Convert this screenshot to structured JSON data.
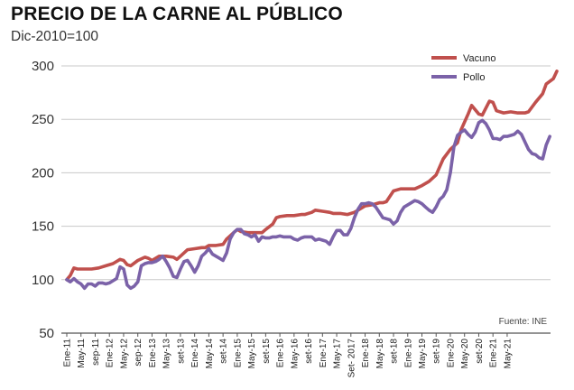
{
  "chart_data": {
    "type": "line",
    "title": "PRECIO DE LA CARNE AL PÚBLICO",
    "subtitle": "Dic-2010=100",
    "source": "Fuente: INE",
    "ylim": [
      50,
      300
    ],
    "yticks": [
      50,
      100,
      150,
      200,
      250,
      300
    ],
    "grid": true,
    "legend_position": "top-right",
    "x_tick_labels": [
      "Ene-11",
      "May-11",
      "sep-11",
      "Ene-12",
      "May-12",
      "sep-12",
      "Ene-13",
      "May-13",
      "set-13",
      "Ene-14",
      "May-14",
      "set-14",
      "Ene-15",
      "May-15",
      "set-15",
      "Ene-16",
      "May-16",
      "set-16",
      "Ene-17",
      "May-17",
      "Set- 2017",
      "Ene-18",
      "May-18",
      "set-18",
      "Ene-19",
      "May-19",
      "set-19",
      "Ene-20",
      "May-20",
      "set-20",
      "Ene-21",
      "May-21"
    ],
    "x_start_month_index": 0,
    "x_month_step": 4,
    "series": [
      {
        "name": "Vacuno",
        "color": "#c0504d",
        "points": [
          [
            0,
            100
          ],
          [
            1,
            104
          ],
          [
            2,
            111
          ],
          [
            3,
            110
          ],
          [
            5,
            110
          ],
          [
            7,
            110
          ],
          [
            9,
            111
          ],
          [
            11,
            113
          ],
          [
            13,
            115
          ],
          [
            15,
            119
          ],
          [
            16,
            118
          ],
          [
            17,
            114
          ],
          [
            18,
            113
          ],
          [
            20,
            118
          ],
          [
            22,
            121
          ],
          [
            23,
            120
          ],
          [
            24,
            118
          ],
          [
            26,
            122
          ],
          [
            28,
            122
          ],
          [
            30,
            121
          ],
          [
            31,
            119
          ],
          [
            32,
            122
          ],
          [
            34,
            128
          ],
          [
            36,
            129
          ],
          [
            38,
            130
          ],
          [
            39,
            130
          ],
          [
            40,
            132
          ],
          [
            42,
            132
          ],
          [
            44,
            133
          ],
          [
            45,
            138
          ],
          [
            47,
            144
          ],
          [
            48,
            147
          ],
          [
            49,
            145
          ],
          [
            51,
            144
          ],
          [
            53,
            144
          ],
          [
            55,
            144
          ],
          [
            56,
            147
          ],
          [
            58,
            152
          ],
          [
            59,
            158
          ],
          [
            60,
            159
          ],
          [
            62,
            160
          ],
          [
            64,
            160
          ],
          [
            66,
            161
          ],
          [
            67,
            161
          ],
          [
            69,
            163
          ],
          [
            70,
            165
          ],
          [
            72,
            164
          ],
          [
            74,
            163
          ],
          [
            75,
            162
          ],
          [
            77,
            162
          ],
          [
            79,
            161
          ],
          [
            81,
            163
          ],
          [
            83,
            167
          ],
          [
            84,
            169
          ],
          [
            86,
            170
          ],
          [
            88,
            172
          ],
          [
            89,
            172
          ],
          [
            90,
            173
          ],
          [
            92,
            183
          ],
          [
            94,
            185
          ],
          [
            96,
            185
          ],
          [
            98,
            185
          ],
          [
            100,
            188
          ],
          [
            102,
            192
          ],
          [
            104,
            198
          ],
          [
            106,
            213
          ],
          [
            108,
            222
          ],
          [
            110,
            228
          ],
          [
            111,
            240
          ],
          [
            113,
            255
          ],
          [
            114,
            263
          ],
          [
            116,
            255
          ],
          [
            117,
            254
          ],
          [
            119,
            267
          ],
          [
            120,
            266
          ],
          [
            121,
            258
          ],
          [
            123,
            256
          ],
          [
            125,
            257
          ],
          [
            127,
            256
          ],
          [
            129,
            256
          ],
          [
            130,
            257
          ],
          [
            132,
            266
          ],
          [
            134,
            274
          ],
          [
            135,
            283
          ],
          [
            137,
            288
          ],
          [
            138,
            295
          ]
        ]
      },
      {
        "name": "Pollo",
        "color": "#7b62a8",
        "points": [
          [
            0,
            100
          ],
          [
            1,
            98
          ],
          [
            2,
            101
          ],
          [
            3,
            98
          ],
          [
            4,
            96
          ],
          [
            5,
            92
          ],
          [
            6,
            96
          ],
          [
            7,
            96
          ],
          [
            8,
            94
          ],
          [
            9,
            97
          ],
          [
            10,
            97
          ],
          [
            11,
            96
          ],
          [
            12,
            97
          ],
          [
            13,
            99
          ],
          [
            14,
            101
          ],
          [
            15,
            112
          ],
          [
            16,
            110
          ],
          [
            17,
            95
          ],
          [
            18,
            92
          ],
          [
            19,
            94
          ],
          [
            20,
            98
          ],
          [
            21,
            113
          ],
          [
            22,
            115
          ],
          [
            23,
            116
          ],
          [
            24,
            116
          ],
          [
            25,
            117
          ],
          [
            26,
            119
          ],
          [
            27,
            122
          ],
          [
            28,
            117
          ],
          [
            29,
            111
          ],
          [
            30,
            103
          ],
          [
            31,
            102
          ],
          [
            32,
            110
          ],
          [
            33,
            117
          ],
          [
            34,
            118
          ],
          [
            35,
            113
          ],
          [
            36,
            107
          ],
          [
            37,
            113
          ],
          [
            38,
            122
          ],
          [
            39,
            125
          ],
          [
            40,
            129
          ],
          [
            41,
            124
          ],
          [
            42,
            122
          ],
          [
            43,
            120
          ],
          [
            44,
            118
          ],
          [
            45,
            125
          ],
          [
            46,
            138
          ],
          [
            47,
            144
          ],
          [
            48,
            147
          ],
          [
            49,
            147
          ],
          [
            50,
            143
          ],
          [
            51,
            142
          ],
          [
            52,
            140
          ],
          [
            53,
            142
          ],
          [
            54,
            136
          ],
          [
            55,
            140
          ],
          [
            56,
            139
          ],
          [
            57,
            139
          ],
          [
            58,
            140
          ],
          [
            59,
            140
          ],
          [
            60,
            141
          ],
          [
            61,
            140
          ],
          [
            62,
            140
          ],
          [
            63,
            140
          ],
          [
            64,
            138
          ],
          [
            65,
            137
          ],
          [
            66,
            139
          ],
          [
            67,
            140
          ],
          [
            68,
            140
          ],
          [
            69,
            140
          ],
          [
            70,
            137
          ],
          [
            71,
            138
          ],
          [
            72,
            137
          ],
          [
            73,
            136
          ],
          [
            74,
            133
          ],
          [
            75,
            140
          ],
          [
            76,
            146
          ],
          [
            77,
            146
          ],
          [
            78,
            142
          ],
          [
            79,
            142
          ],
          [
            80,
            148
          ],
          [
            81,
            158
          ],
          [
            82,
            166
          ],
          [
            83,
            171
          ],
          [
            84,
            171
          ],
          [
            85,
            172
          ],
          [
            86,
            171
          ],
          [
            87,
            168
          ],
          [
            88,
            163
          ],
          [
            89,
            158
          ],
          [
            90,
            157
          ],
          [
            91,
            156
          ],
          [
            92,
            152
          ],
          [
            93,
            155
          ],
          [
            94,
            163
          ],
          [
            95,
            168
          ],
          [
            96,
            170
          ],
          [
            97,
            172
          ],
          [
            98,
            174
          ],
          [
            99,
            173
          ],
          [
            100,
            171
          ],
          [
            101,
            168
          ],
          [
            102,
            165
          ],
          [
            103,
            163
          ],
          [
            104,
            168
          ],
          [
            105,
            175
          ],
          [
            106,
            178
          ],
          [
            107,
            184
          ],
          [
            108,
            200
          ],
          [
            109,
            224
          ],
          [
            110,
            235
          ],
          [
            111,
            238
          ],
          [
            112,
            240
          ],
          [
            113,
            236
          ],
          [
            114,
            233
          ],
          [
            115,
            238
          ],
          [
            116,
            247
          ],
          [
            117,
            249
          ],
          [
            118,
            246
          ],
          [
            119,
            240
          ],
          [
            120,
            232
          ],
          [
            121,
            232
          ],
          [
            122,
            231
          ],
          [
            123,
            234
          ],
          [
            124,
            234
          ],
          [
            125,
            235
          ],
          [
            126,
            236
          ],
          [
            127,
            239
          ],
          [
            128,
            236
          ],
          [
            129,
            229
          ],
          [
            130,
            222
          ],
          [
            131,
            218
          ],
          [
            132,
            217
          ],
          [
            133,
            214
          ],
          [
            134,
            213
          ],
          [
            135,
            226
          ],
          [
            136,
            234
          ]
        ]
      }
    ]
  }
}
